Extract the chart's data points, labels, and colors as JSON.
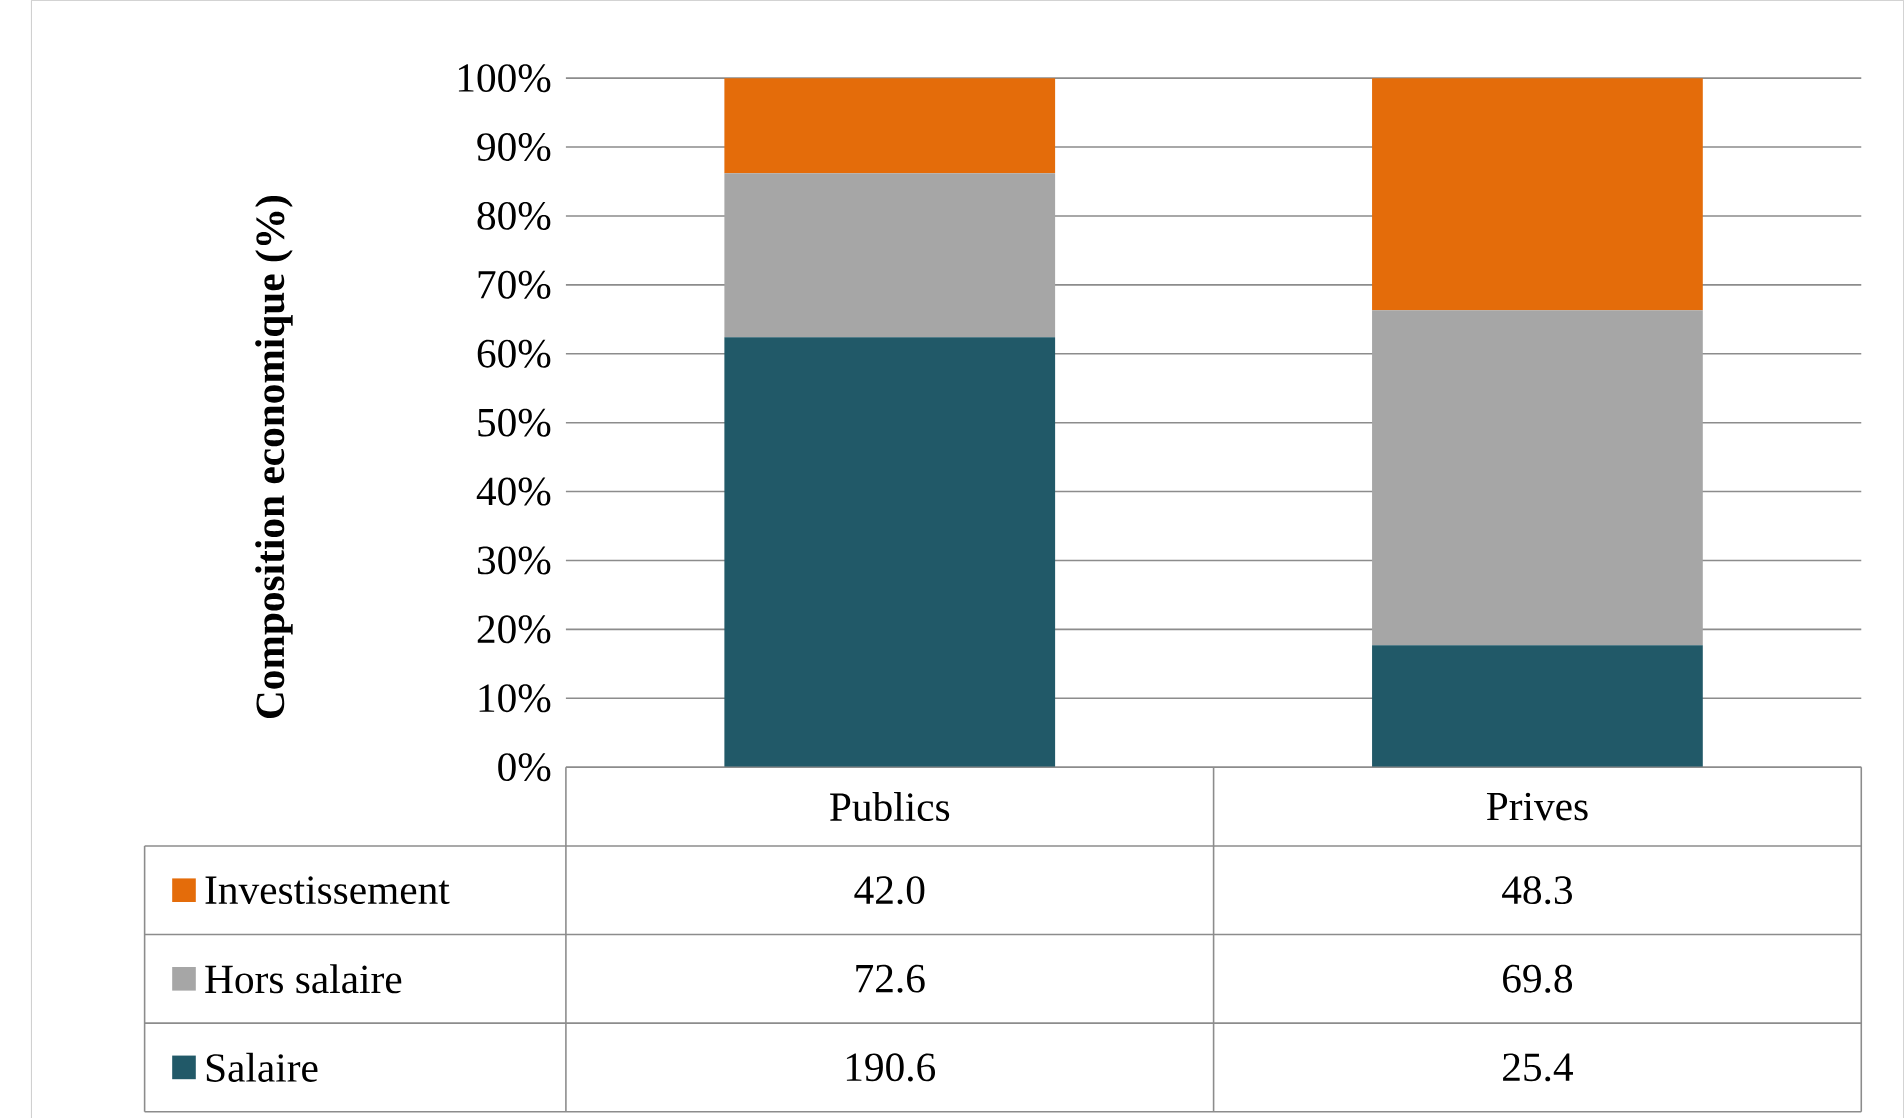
{
  "chart_data": {
    "type": "bar",
    "stacked": true,
    "ylabel": "Composition economique (%)",
    "categories": [
      "Publics",
      "Prives"
    ],
    "series": [
      {
        "name": "Salaire",
        "color": "#215968",
        "values": [
          62.4,
          17.7
        ]
      },
      {
        "name": "Hors salaire",
        "color": "#a6a6a6",
        "values": [
          23.8,
          48.6
        ]
      },
      {
        "name": "Investissement",
        "color": "#e46c0a",
        "values": [
          13.8,
          33.7
        ]
      }
    ],
    "annotations": [
      "42.0",
      "48.3",
      "72.6",
      "69.8",
      "190.6",
      "25.4"
    ],
    "ylim": [
      0,
      100
    ],
    "yticks": [
      {
        "value": 0,
        "label": "0%"
      },
      {
        "value": 10,
        "label": "10%"
      },
      {
        "value": 20,
        "label": "20%"
      },
      {
        "value": 30,
        "label": "30%"
      },
      {
        "value": 40,
        "label": "40%"
      },
      {
        "value": 50,
        "label": "50%"
      },
      {
        "value": 60,
        "label": "60%"
      },
      {
        "value": 70,
        "label": "70%"
      },
      {
        "value": 80,
        "label": "80%"
      },
      {
        "value": 90,
        "label": "90%"
      },
      {
        "value": 100,
        "label": "100%"
      }
    ],
    "grid": "y",
    "legend": "bottom left"
  }
}
